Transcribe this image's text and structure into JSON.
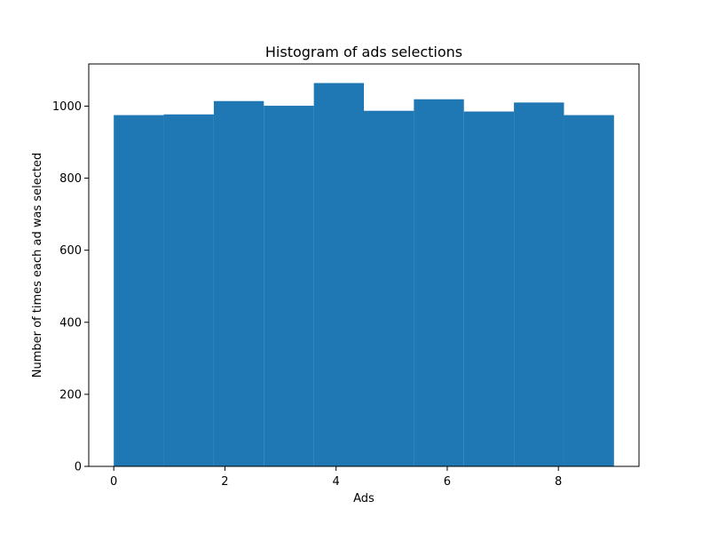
{
  "chart_data": {
    "type": "bar",
    "title": "Histogram of ads selections",
    "xlabel": "Ads",
    "ylabel": "Number of times each ad was selected",
    "bins": [
      {
        "x0": 0.0,
        "x1": 0.9,
        "value": 975
      },
      {
        "x0": 0.9,
        "x1": 1.8,
        "value": 977
      },
      {
        "x0": 1.8,
        "x1": 2.7,
        "value": 1014
      },
      {
        "x0": 2.7,
        "x1": 3.6,
        "value": 1001
      },
      {
        "x0": 3.6,
        "x1": 4.5,
        "value": 1064
      },
      {
        "x0": 4.5,
        "x1": 5.4,
        "value": 987
      },
      {
        "x0": 5.4,
        "x1": 6.3,
        "value": 1019
      },
      {
        "x0": 6.3,
        "x1": 7.2,
        "value": 985
      },
      {
        "x0": 7.2,
        "x1": 8.1,
        "value": 1010
      },
      {
        "x0": 8.1,
        "x1": 9.0,
        "value": 975
      }
    ],
    "xlim": [
      -0.45,
      9.45
    ],
    "ylim": [
      0,
      1117
    ],
    "xticks": [
      0,
      2,
      4,
      6,
      8
    ],
    "xtick_labels": [
      "0",
      "2",
      "4",
      "6",
      "8"
    ],
    "yticks": [
      0,
      200,
      400,
      600,
      800,
      1000
    ],
    "ytick_labels": [
      "0",
      "200",
      "400",
      "600",
      "800",
      "1000"
    ],
    "color": "#1f77b4",
    "grid": false,
    "legend": false
  }
}
